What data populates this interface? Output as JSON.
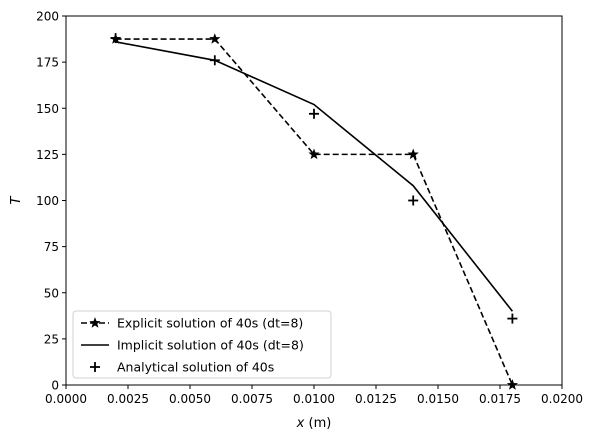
{
  "chart_data": {
    "type": "line",
    "title": "",
    "xlabel_var": "x",
    "xlabel_unit": " (m)",
    "ylabel": "T",
    "xlim": [
      0.0,
      0.02
    ],
    "ylim": [
      0,
      200
    ],
    "xticks": [
      0.0,
      0.0025,
      0.005,
      0.0075,
      0.01,
      0.0125,
      0.015,
      0.0175,
      0.02
    ],
    "xtick_labels": [
      "0.0000",
      "0.0025",
      "0.0050",
      "0.0075",
      "0.0100",
      "0.0125",
      "0.0150",
      "0.0175",
      "0.0200"
    ],
    "yticks": [
      0,
      25,
      50,
      75,
      100,
      125,
      150,
      175,
      200
    ],
    "ytick_labels": [
      "0",
      "25",
      "50",
      "75",
      "100",
      "125",
      "150",
      "175",
      "200"
    ],
    "grid": false,
    "legend_position": "lower-left",
    "series": [
      {
        "name": "Explicit solution of 40s (dt=8)",
        "style": "dashed",
        "marker": "star",
        "color": "#000000",
        "x": [
          0.002,
          0.006,
          0.01,
          0.014,
          0.018
        ],
        "y": [
          187.5,
          187.5,
          125.0,
          125.0,
          0.0
        ]
      },
      {
        "name": "Implicit solution of 40s (dt=8)",
        "style": "solid",
        "marker": "none",
        "color": "#000000",
        "x": [
          0.002,
          0.006,
          0.01,
          0.014,
          0.018
        ],
        "y": [
          186.0,
          176.0,
          152.0,
          108.0,
          40.0
        ]
      },
      {
        "name": "Analytical solution of 40s",
        "style": "none",
        "marker": "plus",
        "color": "#000000",
        "x": [
          0.002,
          0.006,
          0.01,
          0.014,
          0.018
        ],
        "y": [
          188.0,
          176.0,
          147.0,
          100.0,
          36.0
        ]
      }
    ]
  }
}
